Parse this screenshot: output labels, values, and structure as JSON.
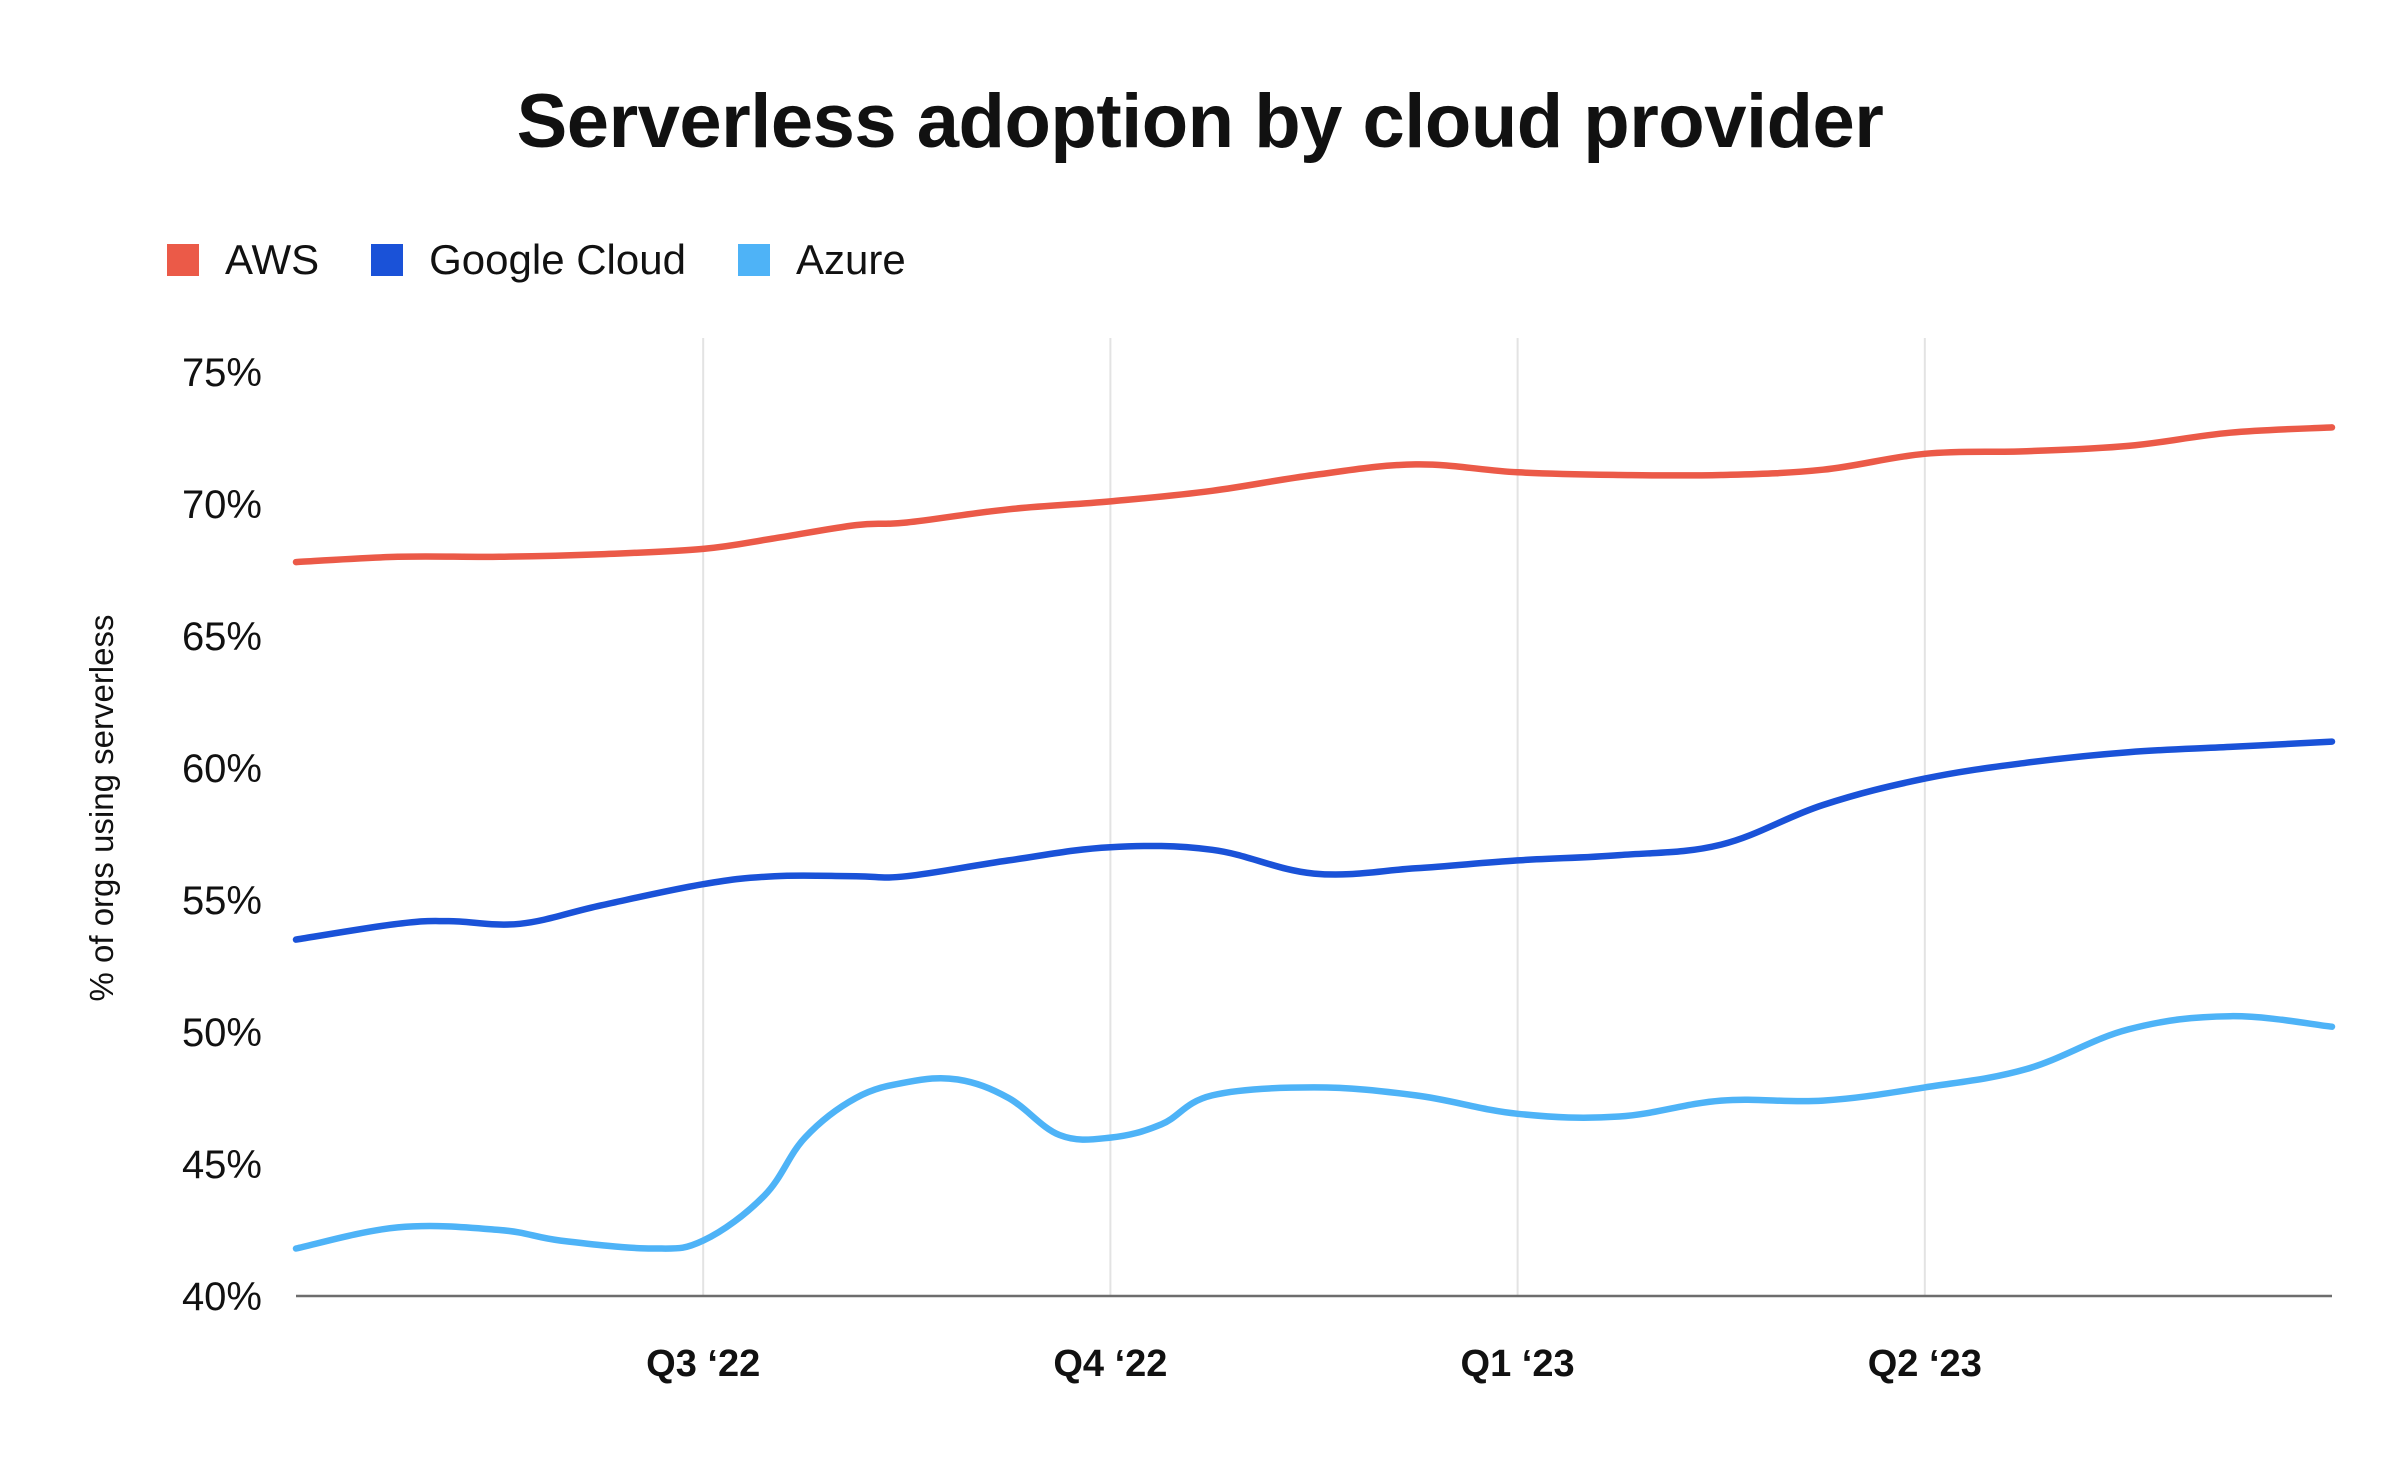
{
  "chart_data": {
    "type": "line",
    "title": "Serverless adoption by cloud provider",
    "xlabel": "",
    "ylabel": "% of orgs using serverless",
    "ylim": [
      40,
      75
    ],
    "xlim": [
      0,
      20
    ],
    "legend_position": "top-left",
    "grid": "vertical",
    "y_ticks": [
      {
        "value": 40,
        "label": "40%"
      },
      {
        "value": 45,
        "label": "45%"
      },
      {
        "value": 50,
        "label": "50%"
      },
      {
        "value": 55,
        "label": "55%"
      },
      {
        "value": 60,
        "label": "60%"
      },
      {
        "value": 65,
        "label": "65%"
      },
      {
        "value": 70,
        "label": "70%"
      },
      {
        "value": 75,
        "label": "75%"
      }
    ],
    "x_ticks": [
      {
        "value": 4,
        "label": "Q3 ‘22"
      },
      {
        "value": 8,
        "label": "Q4 ‘22"
      },
      {
        "value": 12,
        "label": "Q1 ‘23"
      },
      {
        "value": 16,
        "label": "Q2 ‘23"
      }
    ],
    "series": [
      {
        "name": "AWS",
        "color": "#EB5A48",
        "x": [
          0,
          1,
          2,
          3,
          4,
          4.7,
          5.5,
          6,
          7,
          8,
          9,
          10,
          11,
          12,
          13,
          14,
          15,
          16,
          17,
          18,
          19,
          20
        ],
        "y": [
          67.8,
          68,
          68,
          68.1,
          68.3,
          68.7,
          69.2,
          69.3,
          69.8,
          70.1,
          70.5,
          71.1,
          71.5,
          71.2,
          71.1,
          71.1,
          71.3,
          71.9,
          72,
          72.2,
          72.7,
          72.9
        ]
      },
      {
        "name": "Google Cloud",
        "color": "#1A52D8",
        "x": [
          0,
          1,
          1.5,
          2.2,
          3,
          4,
          4.7,
          5.5,
          6,
          7,
          8,
          9,
          10,
          11,
          12,
          13,
          14,
          15,
          16,
          17,
          18,
          19,
          20
        ],
        "y": [
          53.5,
          54.1,
          54.2,
          54.1,
          54.8,
          55.6,
          55.9,
          55.9,
          55.9,
          56.5,
          57,
          56.9,
          56,
          56.2,
          56.5,
          56.7,
          57.1,
          58.6,
          59.6,
          60.2,
          60.6,
          60.8,
          61
        ]
      },
      {
        "name": "Azure",
        "color": "#4EB3F7",
        "x": [
          0,
          1,
          2,
          2.6,
          3.5,
          4,
          4.6,
          5,
          5.5,
          6,
          6.5,
          7,
          7.5,
          8,
          8.5,
          9,
          10,
          11,
          12,
          13,
          14,
          15,
          16,
          17,
          18,
          19,
          20
        ],
        "y": [
          41.8,
          42.6,
          42.5,
          42.1,
          41.8,
          42.1,
          43.8,
          46,
          47.5,
          48.1,
          48.2,
          47.5,
          46.1,
          46,
          46.5,
          47.6,
          47.9,
          47.6,
          46.9,
          46.8,
          47.4,
          47.4,
          47.9,
          48.6,
          50.1,
          50.6,
          50.2
        ]
      }
    ]
  }
}
